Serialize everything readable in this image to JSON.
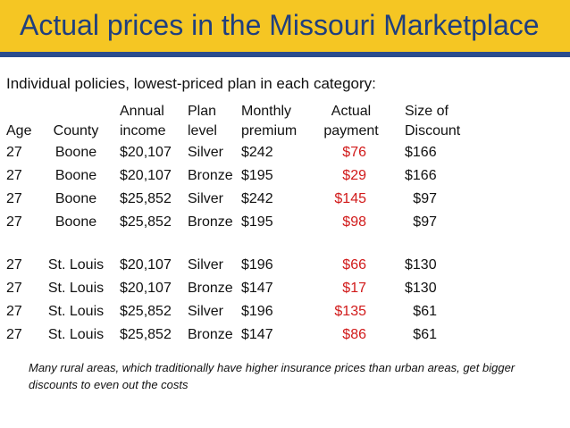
{
  "title": "Actual prices in the Missouri Marketplace",
  "subtitle": "Individual policies, lowest-priced plan in each category:",
  "headers": {
    "age": [
      "",
      "Age"
    ],
    "county": [
      "",
      "County"
    ],
    "income": [
      "Annual",
      "income"
    ],
    "level": [
      "Plan",
      "level"
    ],
    "premium": [
      "Monthly",
      "premium"
    ],
    "payment": [
      "Actual",
      "payment"
    ],
    "discount": [
      "Size of",
      "Discount"
    ]
  },
  "rows": [
    {
      "age": "27",
      "county": "Boone",
      "income": "$20,107",
      "level": "Silver",
      "premium": "$242",
      "payment": "$76",
      "discount": "$166"
    },
    {
      "age": "27",
      "county": "Boone",
      "income": "$20,107",
      "level": "Bronze",
      "premium": "$195",
      "payment": "$29",
      "discount": "$166"
    },
    {
      "age": "27",
      "county": "Boone",
      "income": "$25,852",
      "level": "Silver",
      "premium": "$242",
      "payment": "$145",
      "discount": "$97"
    },
    {
      "age": "27",
      "county": "Boone",
      "income": "$25,852",
      "level": "Bronze",
      "premium": "$195",
      "payment": "$98",
      "discount": "$97"
    },
    {
      "age": "27",
      "county": "St. Louis",
      "income": "$20,107",
      "level": "Silver",
      "premium": "$196",
      "payment": "$66",
      "discount": "$130"
    },
    {
      "age": "27",
      "county": "St. Louis",
      "income": "$20,107",
      "level": "Bronze",
      "premium": "$147",
      "payment": "$17",
      "discount": "$130"
    },
    {
      "age": "27",
      "county": "St. Louis",
      "income": "$25,852",
      "level": "Silver",
      "premium": "$196",
      "payment": "$135",
      "discount": "$61"
    },
    {
      "age": "27",
      "county": "St. Louis",
      "income": "$25,852",
      "level": "Bronze",
      "premium": "$147",
      "payment": "$86",
      "discount": "$61"
    }
  ],
  "note": "Many rural areas, which traditionally have higher insurance prices than urban areas, get bigger discounts to even out the costs",
  "colors": {
    "title_bar": "#f5c623",
    "title_text": "#1f3f7f",
    "rule": "#2a4c8e",
    "payment": "#d11a1a"
  }
}
